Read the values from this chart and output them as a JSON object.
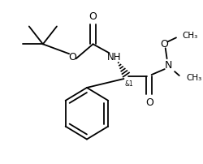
{
  "background_color": "#ffffff",
  "line_color": "#000000",
  "lw": 1.3,
  "figsize": [
    2.51,
    2.02
  ],
  "dpi": 100,
  "xlim": [
    0,
    251
  ],
  "ylim": [
    0,
    202
  ]
}
